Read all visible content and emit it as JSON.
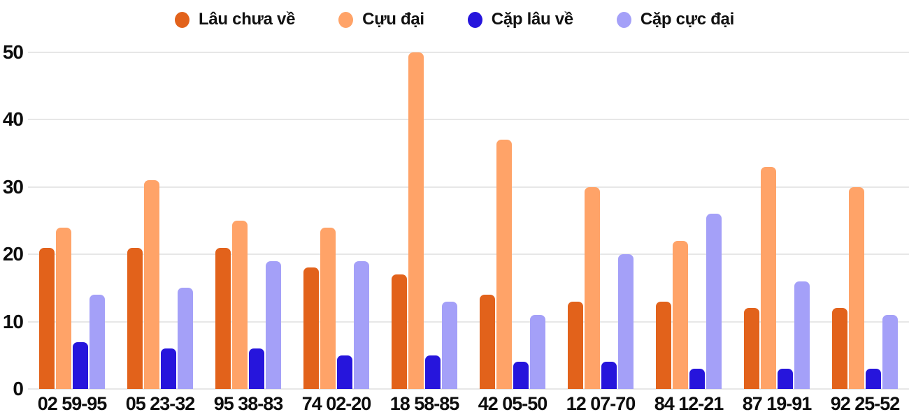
{
  "chart_data": {
    "type": "bar",
    "title": "",
    "categories": [
      "02 59-95",
      "05 23-32",
      "95 38-83",
      "74 02-20",
      "18 58-85",
      "42 05-50",
      "12 07-70",
      "84 12-21",
      "87 19-91",
      "92 25-52"
    ],
    "series": [
      {
        "name": "Lâu chưa về",
        "color": "#E2621B",
        "values": [
          21,
          21,
          21,
          18,
          17,
          14,
          13,
          13,
          12,
          12
        ]
      },
      {
        "name": "Cựu đại",
        "color": "#FFA368",
        "values": [
          24,
          31,
          25,
          24,
          50,
          37,
          30,
          22,
          33,
          30
        ]
      },
      {
        "name": "Cặp lâu về",
        "color": "#2615DC",
        "values": [
          7,
          6,
          6,
          5,
          5,
          4,
          4,
          3,
          3,
          3
        ]
      },
      {
        "name": "Cặp cực đại",
        "color": "#A4A0F8",
        "values": [
          14,
          15,
          19,
          19,
          13,
          11,
          20,
          26,
          16,
          11
        ]
      }
    ],
    "xlabel": "",
    "ylabel": "",
    "ylim": [
      0,
      50
    ],
    "yticks": [
      0,
      10,
      20,
      30,
      40,
      50
    ],
    "grid": true,
    "legend_position": "top"
  },
  "colors": {
    "background": "#FFFFFF",
    "grid_line": "#E7E7E7",
    "axis_text": "#0D0D0D"
  }
}
